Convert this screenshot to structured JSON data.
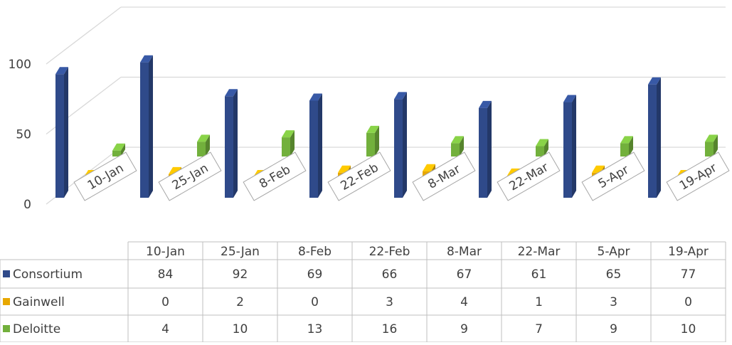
{
  "chart_data": {
    "type": "bar",
    "categories": [
      "10-Jan",
      "25-Jan",
      "8-Feb",
      "22-Feb",
      "8-Mar",
      "22-Mar",
      "5-Apr",
      "19-Apr"
    ],
    "series": [
      {
        "name": "Consortium",
        "color": "#2f4a8a",
        "values": [
          84,
          92,
          69,
          66,
          67,
          61,
          65,
          77
        ]
      },
      {
        "name": "Gainwell",
        "color": "#e8a800",
        "values": [
          0,
          2,
          0,
          3,
          4,
          1,
          3,
          0
        ]
      },
      {
        "name": "Deloitte",
        "color": "#72b03c",
        "values": [
          4,
          10,
          13,
          16,
          9,
          7,
          9,
          10
        ]
      }
    ],
    "ylim": [
      0,
      100
    ],
    "yticks": [
      0,
      50,
      100
    ],
    "grid": true
  }
}
